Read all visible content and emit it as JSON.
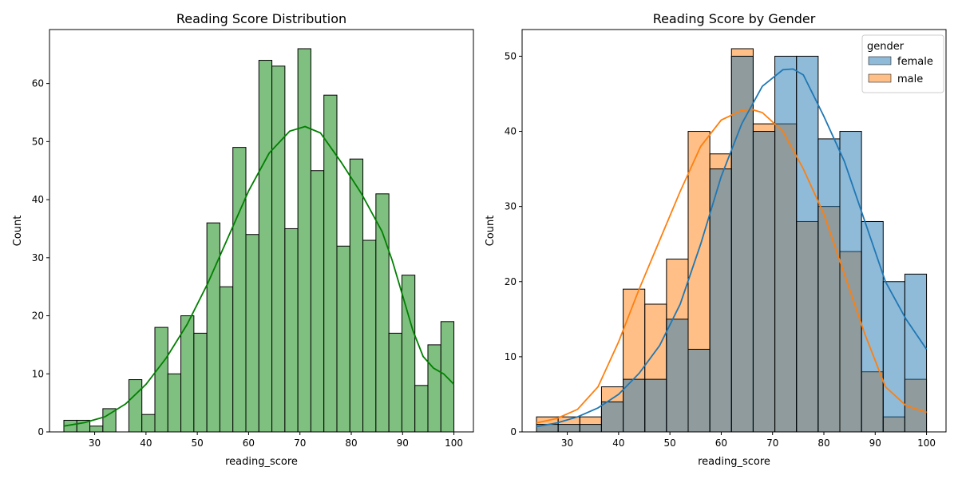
{
  "chart_data": [
    {
      "type": "bar",
      "title": "Reading Score Distribution",
      "xlabel": "reading_score",
      "ylabel": "Count",
      "xlim": [
        21.2,
        103.8
      ],
      "ylim": [
        0,
        69.3
      ],
      "xticks": [
        30,
        40,
        50,
        60,
        70,
        80,
        90,
        100
      ],
      "yticks": [
        0,
        10,
        20,
        30,
        40,
        50,
        60
      ],
      "bin_start": 24,
      "bin_width": 2.5333,
      "values": [
        2,
        2,
        1,
        4,
        0,
        9,
        3,
        18,
        10,
        20,
        17,
        36,
        25,
        49,
        34,
        64,
        63,
        35,
        66,
        45,
        58,
        32,
        47,
        33,
        41,
        17,
        27,
        8,
        15,
        19
      ],
      "kde": {
        "x": [
          24,
          28,
          32,
          36,
          40,
          44,
          48,
          52,
          56,
          60,
          64,
          68,
          71,
          74,
          78,
          82,
          86,
          88,
          90,
          92,
          94,
          96,
          98,
          100
        ],
        "y": [
          1,
          1.6,
          2.6,
          4.8,
          8.2,
          12.8,
          18.5,
          25.5,
          33.5,
          41.5,
          48,
          51.8,
          52.6,
          51.5,
          46.5,
          41,
          34.5,
          29.5,
          23.5,
          17.5,
          13,
          11,
          10,
          8.2
        ]
      },
      "bar_color": "#7fbf7f",
      "line_color": "#008000"
    },
    {
      "type": "bar",
      "title": "Reading Score by Gender",
      "xlabel": "reading_score",
      "ylabel": "Count",
      "xlim": [
        21.2,
        103.8
      ],
      "ylim": [
        0,
        53.55
      ],
      "xticks": [
        30,
        40,
        50,
        60,
        70,
        80,
        90,
        100
      ],
      "yticks": [
        0,
        10,
        20,
        30,
        40,
        50
      ],
      "bin_start": 24,
      "bin_width": 4.2222,
      "legend_title": "gender",
      "legend_position": "top-right",
      "series": [
        {
          "name": "female",
          "values": [
            1,
            1,
            1,
            4,
            7,
            7,
            15,
            11,
            35,
            50,
            40,
            50,
            50,
            39,
            40,
            28,
            20,
            21
          ],
          "color": "#1f77b4",
          "kde": {
            "x": [
              24,
              28,
              32,
              36,
              40,
              44,
              48,
              52,
              56,
              60,
              64,
              68,
              72,
              74,
              76,
              80,
              84,
              88,
              92,
              96,
              100
            ],
            "y": [
              0.7,
              1.2,
              2.0,
              3.2,
              5,
              7.8,
              11.5,
              17,
              25,
              34,
              41,
              46,
              48.2,
              48.3,
              47.5,
              42,
              36,
              28,
              20,
              15,
              11
            ]
          }
        },
        {
          "name": "male",
          "values": [
            2,
            2,
            2,
            6,
            19,
            17,
            23,
            40,
            37,
            51,
            41,
            41,
            28,
            30,
            24,
            8,
            2,
            7
          ],
          "color": "#ff7f0e",
          "kde": {
            "x": [
              24,
              28,
              32,
              36,
              40,
              44,
              48,
              52,
              56,
              60,
              64,
              66,
              68,
              72,
              76,
              80,
              84,
              88,
              92,
              96,
              100
            ],
            "y": [
              1.2,
              1.8,
              3,
              6,
              12,
              19,
              25.5,
              32,
              38,
              41.5,
              42.8,
              42.9,
              42.5,
              40,
              35,
              29,
              21,
              13,
              6,
              3.5,
              2.6
            ]
          }
        }
      ]
    }
  ]
}
